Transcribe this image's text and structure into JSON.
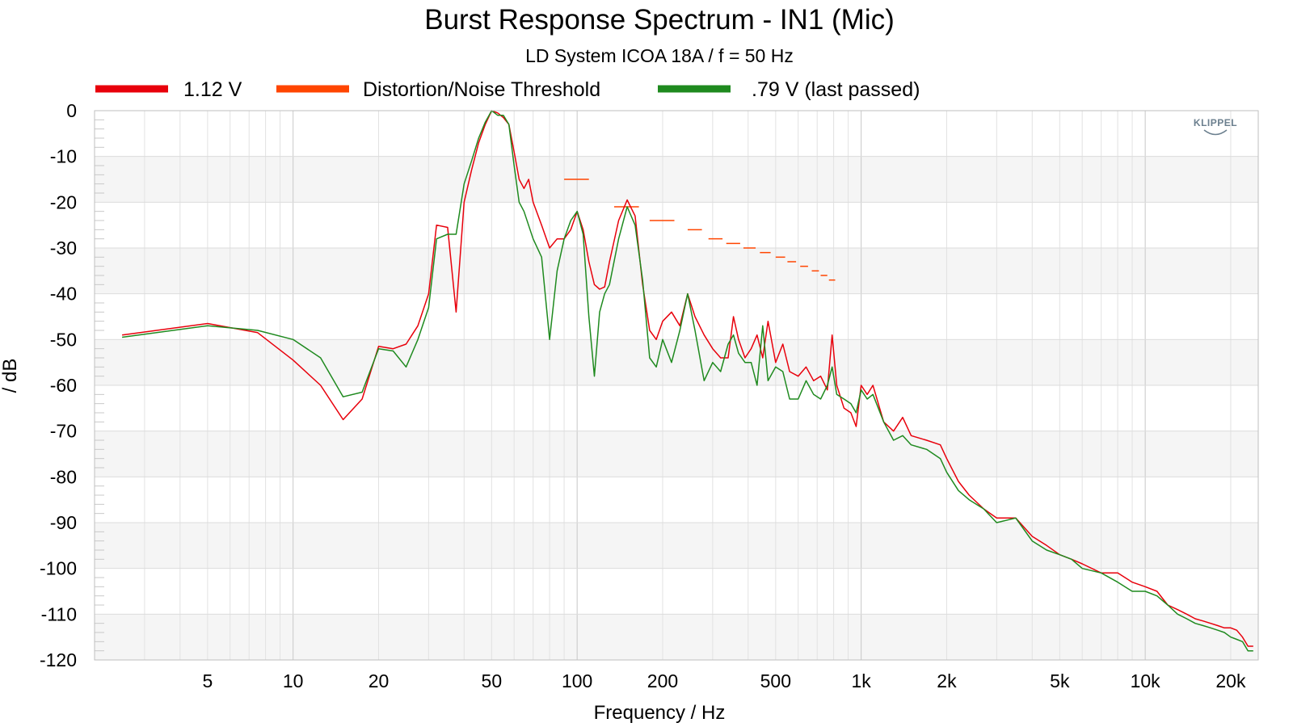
{
  "chart_data": {
    "type": "line",
    "title": "Burst Response Spectrum - IN1 (Mic)",
    "subtitle": "LD System ICOA 18A / f = 50 Hz",
    "xlabel": "Frequency / Hz",
    "ylabel": "/ dB",
    "x_scale": "log",
    "xlim": [
      2,
      25000
    ],
    "ylim": [
      -120,
      0
    ],
    "x_ticks": [
      {
        "value": 5,
        "label": "5"
      },
      {
        "value": 10,
        "label": "10"
      },
      {
        "value": 20,
        "label": "20"
      },
      {
        "value": 50,
        "label": "50"
      },
      {
        "value": 100,
        "label": "100"
      },
      {
        "value": 200,
        "label": "200"
      },
      {
        "value": 500,
        "label": "500"
      },
      {
        "value": 1000,
        "label": "1k"
      },
      {
        "value": 2000,
        "label": "2k"
      },
      {
        "value": 5000,
        "label": "5k"
      },
      {
        "value": 10000,
        "label": "10k"
      },
      {
        "value": 20000,
        "label": "20k"
      }
    ],
    "y_ticks": [
      {
        "value": 0,
        "label": "0"
      },
      {
        "value": -10,
        "label": "-10"
      },
      {
        "value": -20,
        "label": "-20"
      },
      {
        "value": -30,
        "label": "-30"
      },
      {
        "value": -40,
        "label": "-40"
      },
      {
        "value": -50,
        "label": "-50"
      },
      {
        "value": -60,
        "label": "-60"
      },
      {
        "value": -70,
        "label": "-70"
      },
      {
        "value": -80,
        "label": "-80"
      },
      {
        "value": -90,
        "label": "-90"
      },
      {
        "value": -100,
        "label": "-100"
      },
      {
        "value": -110,
        "label": "-110"
      },
      {
        "value": -120,
        "label": "-120"
      }
    ],
    "grid": true,
    "legend_position": "top",
    "logo": "KLIPPEL",
    "series": [
      {
        "name": "1.12 V",
        "color": "#e8000b",
        "kind": "line",
        "points": [
          [
            2.5,
            -49
          ],
          [
            5,
            -46.5
          ],
          [
            7.5,
            -48.5
          ],
          [
            10,
            -54.5
          ],
          [
            12.5,
            -60
          ],
          [
            15,
            -67.5
          ],
          [
            17.5,
            -63
          ],
          [
            20,
            -51.5
          ],
          [
            22.5,
            -52
          ],
          [
            25,
            -51
          ],
          [
            27.5,
            -47
          ],
          [
            30,
            -40
          ],
          [
            32,
            -25
          ],
          [
            35,
            -25.5
          ],
          [
            37.5,
            -44
          ],
          [
            40,
            -20
          ],
          [
            42.5,
            -13
          ],
          [
            45,
            -7
          ],
          [
            47.5,
            -3
          ],
          [
            50,
            0
          ],
          [
            52.5,
            -0.5
          ],
          [
            55,
            -1.5
          ],
          [
            57.5,
            -3
          ],
          [
            60,
            -9
          ],
          [
            62.5,
            -15
          ],
          [
            65,
            -17
          ],
          [
            67.5,
            -15
          ],
          [
            70,
            -20
          ],
          [
            75,
            -25
          ],
          [
            80,
            -30
          ],
          [
            85,
            -28
          ],
          [
            90,
            -28
          ],
          [
            95,
            -26
          ],
          [
            100,
            -22
          ],
          [
            105,
            -26
          ],
          [
            110,
            -33
          ],
          [
            115,
            -38
          ],
          [
            120,
            -39
          ],
          [
            125,
            -38.5
          ],
          [
            130,
            -33
          ],
          [
            140,
            -24
          ],
          [
            150,
            -19.5
          ],
          [
            160,
            -23
          ],
          [
            170,
            -38
          ],
          [
            180,
            -48
          ],
          [
            190,
            -50
          ],
          [
            200,
            -46
          ],
          [
            215,
            -44
          ],
          [
            230,
            -47
          ],
          [
            245,
            -40
          ],
          [
            260,
            -45
          ],
          [
            280,
            -49
          ],
          [
            300,
            -52
          ],
          [
            320,
            -54
          ],
          [
            340,
            -54
          ],
          [
            355,
            -45
          ],
          [
            370,
            -50
          ],
          [
            390,
            -54
          ],
          [
            410,
            -52
          ],
          [
            430,
            -49
          ],
          [
            450,
            -54
          ],
          [
            470,
            -46
          ],
          [
            500,
            -55
          ],
          [
            530,
            -51
          ],
          [
            560,
            -57
          ],
          [
            600,
            -58
          ],
          [
            640,
            -56
          ],
          [
            680,
            -59
          ],
          [
            720,
            -58
          ],
          [
            760,
            -61
          ],
          [
            790,
            -49
          ],
          [
            820,
            -60
          ],
          [
            870,
            -65
          ],
          [
            920,
            -66
          ],
          [
            960,
            -69
          ],
          [
            1000,
            -60
          ],
          [
            1050,
            -62
          ],
          [
            1100,
            -60
          ],
          [
            1200,
            -68
          ],
          [
            1300,
            -70
          ],
          [
            1400,
            -67
          ],
          [
            1500,
            -71
          ],
          [
            1700,
            -72
          ],
          [
            1900,
            -73
          ],
          [
            2000,
            -76
          ],
          [
            2200,
            -81
          ],
          [
            2400,
            -84
          ],
          [
            2700,
            -87
          ],
          [
            3000,
            -89
          ],
          [
            3500,
            -89
          ],
          [
            4000,
            -93
          ],
          [
            4500,
            -95
          ],
          [
            5000,
            -97
          ],
          [
            5500,
            -98
          ],
          [
            6000,
            -99
          ],
          [
            7000,
            -101
          ],
          [
            8000,
            -101
          ],
          [
            9000,
            -103
          ],
          [
            10000,
            -104
          ],
          [
            11000,
            -105
          ],
          [
            12000,
            -108
          ],
          [
            13000,
            -109
          ],
          [
            14000,
            -110
          ],
          [
            15000,
            -111
          ],
          [
            16000,
            -111.5
          ],
          [
            17000,
            -112
          ],
          [
            18000,
            -112.5
          ],
          [
            19000,
            -113
          ],
          [
            20000,
            -113
          ],
          [
            21000,
            -113.5
          ],
          [
            22000,
            -115
          ],
          [
            23000,
            -117
          ],
          [
            24000,
            -117
          ]
        ]
      },
      {
        "name": ".79 V (last passed)",
        "color": "#1f8a1f",
        "kind": "line",
        "points": [
          [
            2.5,
            -49.5
          ],
          [
            5,
            -47
          ],
          [
            7.5,
            -48
          ],
          [
            10,
            -50
          ],
          [
            12.5,
            -54
          ],
          [
            15,
            -62.5
          ],
          [
            17.5,
            -61.5
          ],
          [
            20,
            -52
          ],
          [
            22.5,
            -52.5
          ],
          [
            25,
            -56
          ],
          [
            27.5,
            -50
          ],
          [
            30,
            -43
          ],
          [
            32,
            -28
          ],
          [
            35,
            -27
          ],
          [
            37.5,
            -27
          ],
          [
            40,
            -16
          ],
          [
            42.5,
            -11
          ],
          [
            45,
            -6
          ],
          [
            47.5,
            -2.5
          ],
          [
            50,
            0
          ],
          [
            52.5,
            -1
          ],
          [
            55,
            -1
          ],
          [
            57.5,
            -3
          ],
          [
            60,
            -12
          ],
          [
            62.5,
            -20
          ],
          [
            65,
            -22
          ],
          [
            70,
            -28
          ],
          [
            75,
            -32
          ],
          [
            80,
            -50
          ],
          [
            85,
            -35
          ],
          [
            90,
            -28
          ],
          [
            95,
            -24
          ],
          [
            100,
            -22
          ],
          [
            105,
            -27
          ],
          [
            110,
            -45
          ],
          [
            115,
            -58
          ],
          [
            120,
            -44
          ],
          [
            125,
            -40
          ],
          [
            130,
            -38
          ],
          [
            140,
            -28
          ],
          [
            150,
            -21
          ],
          [
            160,
            -25
          ],
          [
            170,
            -37
          ],
          [
            180,
            -54
          ],
          [
            190,
            -56
          ],
          [
            200,
            -50
          ],
          [
            215,
            -55
          ],
          [
            230,
            -48
          ],
          [
            245,
            -40
          ],
          [
            260,
            -48
          ],
          [
            280,
            -59
          ],
          [
            300,
            -55
          ],
          [
            320,
            -57
          ],
          [
            340,
            -51
          ],
          [
            355,
            -49
          ],
          [
            370,
            -53
          ],
          [
            390,
            -55
          ],
          [
            410,
            -55
          ],
          [
            430,
            -60
          ],
          [
            450,
            -47
          ],
          [
            470,
            -59
          ],
          [
            500,
            -56
          ],
          [
            530,
            -57
          ],
          [
            560,
            -63
          ],
          [
            600,
            -63
          ],
          [
            640,
            -59
          ],
          [
            680,
            -62
          ],
          [
            720,
            -63
          ],
          [
            760,
            -60
          ],
          [
            790,
            -56
          ],
          [
            820,
            -62
          ],
          [
            870,
            -63
          ],
          [
            920,
            -64
          ],
          [
            960,
            -66
          ],
          [
            1000,
            -61
          ],
          [
            1050,
            -63
          ],
          [
            1100,
            -62
          ],
          [
            1200,
            -68
          ],
          [
            1300,
            -72
          ],
          [
            1400,
            -71
          ],
          [
            1500,
            -73
          ],
          [
            1700,
            -74
          ],
          [
            1900,
            -76
          ],
          [
            2000,
            -79
          ],
          [
            2200,
            -83
          ],
          [
            2400,
            -85
          ],
          [
            2700,
            -87
          ],
          [
            3000,
            -90
          ],
          [
            3500,
            -89
          ],
          [
            4000,
            -94
          ],
          [
            4500,
            -96
          ],
          [
            5000,
            -97
          ],
          [
            5500,
            -98
          ],
          [
            6000,
            -100
          ],
          [
            7000,
            -101
          ],
          [
            8000,
            -103
          ],
          [
            9000,
            -105
          ],
          [
            10000,
            -105
          ],
          [
            11000,
            -106
          ],
          [
            12000,
            -108
          ],
          [
            13000,
            -110
          ],
          [
            14000,
            -111
          ],
          [
            15000,
            -112
          ],
          [
            16000,
            -112.5
          ],
          [
            17000,
            -113
          ],
          [
            18000,
            -113.5
          ],
          [
            19000,
            -114
          ],
          [
            20000,
            -115
          ],
          [
            21000,
            -115.5
          ],
          [
            22000,
            -116
          ],
          [
            23000,
            -118
          ],
          [
            24000,
            -118
          ]
        ]
      },
      {
        "name": "Distortion/Noise Threshold",
        "color": "#ff4500",
        "kind": "segments",
        "segments": [
          {
            "x": [
              90,
              110
            ],
            "y": -15
          },
          {
            "x": [
              135,
              165
            ],
            "y": -21
          },
          {
            "x": [
              180,
              220
            ],
            "y": -24
          },
          {
            "x": [
              245,
              275
            ],
            "y": -26
          },
          {
            "x": [
              290,
              325
            ],
            "y": -28
          },
          {
            "x": [
              335,
              375
            ],
            "y": -29
          },
          {
            "x": [
              385,
              425
            ],
            "y": -30
          },
          {
            "x": [
              440,
              480
            ],
            "y": -31
          },
          {
            "x": [
              500,
              540
            ],
            "y": -32
          },
          {
            "x": [
              550,
              590
            ],
            "y": -33
          },
          {
            "x": [
              610,
              650
            ],
            "y": -34
          },
          {
            "x": [
              670,
              710
            ],
            "y": -35
          },
          {
            "x": [
              720,
              760
            ],
            "y": -36
          },
          {
            "x": [
              770,
              810
            ],
            "y": -37
          }
        ]
      }
    ]
  }
}
